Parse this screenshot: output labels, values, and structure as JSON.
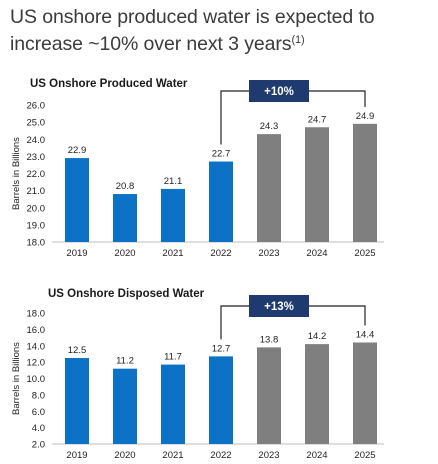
{
  "headline": {
    "text": "US onshore produced water is expected to increase ~10% over next 3 years",
    "footnote": "(1)"
  },
  "colors": {
    "actual": "#0b72c5",
    "forecast": "#7f7f7f",
    "badge": "#1f3a6e"
  },
  "chart_data": [
    {
      "type": "bar",
      "title": "US Onshore Produced Water",
      "ylabel": "Barrels in Billions",
      "categories": [
        "2019",
        "2020",
        "2021",
        "2022",
        "2023",
        "2024",
        "2025"
      ],
      "values": [
        22.9,
        20.8,
        21.1,
        22.7,
        24.3,
        24.7,
        24.9
      ],
      "value_labels": [
        "22.9",
        "20.8",
        "21.1",
        "22.7",
        "24.3",
        "24.7",
        "24.9"
      ],
      "forecast_from_index": 4,
      "ylim": [
        18.0,
        26.0
      ],
      "yticks": [
        18.0,
        19.0,
        20.0,
        21.0,
        22.0,
        23.0,
        24.0,
        25.0,
        26.0
      ],
      "ytick_labels": [
        "18.0",
        "19.0",
        "20.0",
        "21.0",
        "22.0",
        "23.0",
        "24.0",
        "25.0",
        "26.0"
      ],
      "grid": false,
      "annotation": {
        "text": "+10%",
        "from_index": 3,
        "to_index": 6
      }
    },
    {
      "type": "bar",
      "title": "US Onshore Disposed Water",
      "ylabel": "Barrels in Billions",
      "categories": [
        "2019",
        "2020",
        "2021",
        "2022",
        "2023",
        "2024",
        "2025"
      ],
      "values": [
        12.5,
        11.2,
        11.7,
        12.7,
        13.8,
        14.2,
        14.4
      ],
      "value_labels": [
        "12.5",
        "11.2",
        "11.7",
        "12.7",
        "13.8",
        "14.2",
        "14.4"
      ],
      "forecast_from_index": 4,
      "ylim": [
        2.0,
        18.0
      ],
      "yticks": [
        2.0,
        4.0,
        6.0,
        8.0,
        10.0,
        12.0,
        14.0,
        16.0,
        18.0
      ],
      "ytick_labels": [
        "2.0",
        "4.0",
        "6.0",
        "8.0",
        "10.0",
        "12.0",
        "14.0",
        "16.0",
        "18.0"
      ],
      "grid": false,
      "annotation": {
        "text": "+13%",
        "from_index": 3,
        "to_index": 6
      }
    }
  ]
}
